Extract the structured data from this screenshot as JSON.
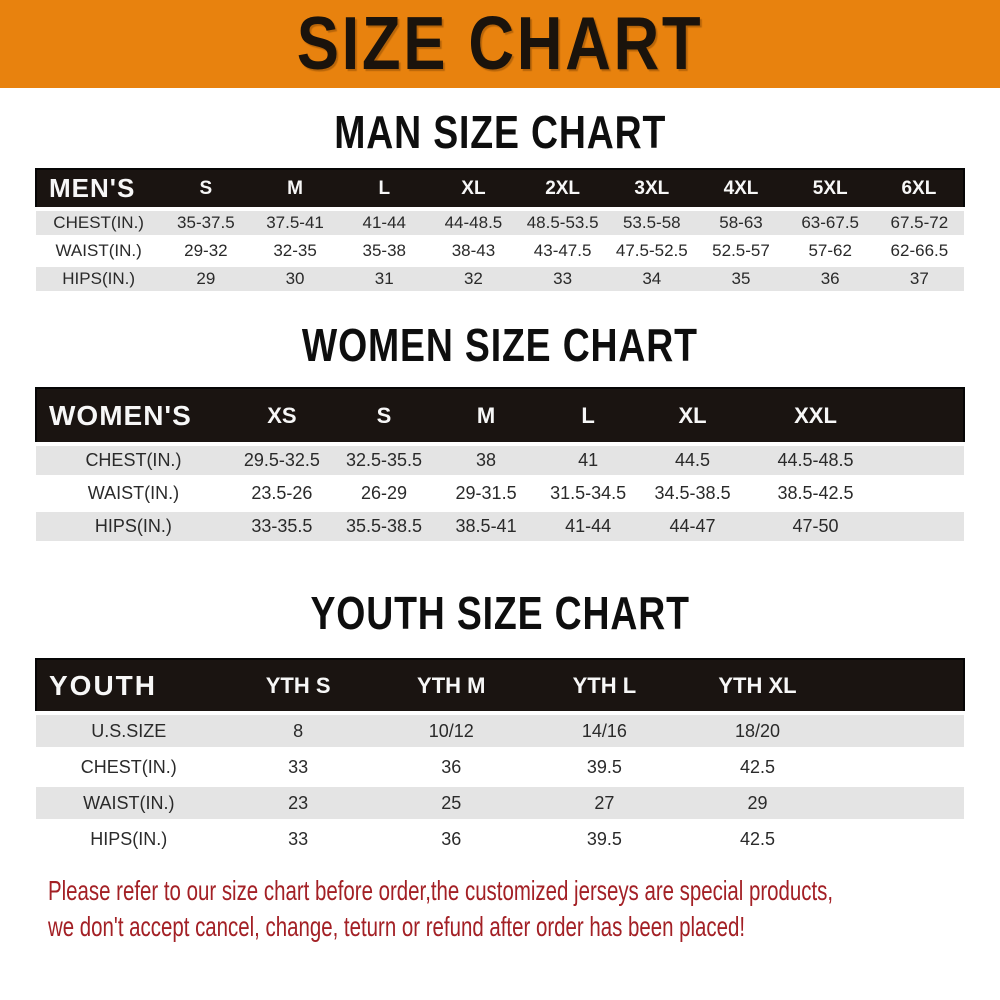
{
  "banner": {
    "title": "SIZE CHART",
    "bg_color": "#E8820E",
    "text_color": "#1A130C"
  },
  "sections": [
    {
      "name": "men",
      "title": "MAN SIZE CHART",
      "header": {
        "label": "MEN'S",
        "sizes": [
          "S",
          "M",
          "L",
          "XL",
          "2XL",
          "3XL",
          "4XL",
          "5XL",
          "6XL"
        ]
      },
      "rows": [
        {
          "label": "CHEST(IN.)",
          "values": [
            "35-37.5",
            "37.5-41",
            "41-44",
            "44-48.5",
            "48.5-53.5",
            "53.5-58",
            "58-63",
            "63-67.5",
            "67.5-72"
          ]
        },
        {
          "label": "WAIST(IN.)",
          "values": [
            "29-32",
            "32-35",
            "35-38",
            "38-43",
            "43-47.5",
            "47.5-52.5",
            "52.5-57",
            "57-62",
            "62-66.5"
          ]
        },
        {
          "label": "HIPS(IN.)",
          "values": [
            "29",
            "30",
            "31",
            "32",
            "33",
            "34",
            "35",
            "36",
            "37"
          ]
        }
      ]
    },
    {
      "name": "women",
      "title": "WOMEN SIZE CHART",
      "header": {
        "label": "WOMEN'S",
        "sizes": [
          "XS",
          "S",
          "M",
          "L",
          "XL",
          "XXL"
        ]
      },
      "rows": [
        {
          "label": "CHEST(IN.)",
          "values": [
            "29.5-32.5",
            "32.5-35.5",
            "38",
            "41",
            "44.5",
            "44.5-48.5"
          ]
        },
        {
          "label": "WAIST(IN.)",
          "values": [
            "23.5-26",
            "26-29",
            "29-31.5",
            "31.5-34.5",
            "34.5-38.5",
            "38.5-42.5"
          ]
        },
        {
          "label": "HIPS(IN.)",
          "values": [
            "33-35.5",
            "35.5-38.5",
            "38.5-41",
            "41-44",
            "44-47",
            "47-50"
          ]
        }
      ]
    },
    {
      "name": "youth",
      "title": "YOUTH SIZE CHART",
      "header": {
        "label": "YOUTH",
        "sizes": [
          "YTH S",
          "YTH M",
          "YTH L",
          "YTH XL"
        ]
      },
      "rows": [
        {
          "label": "U.S.SIZE",
          "values": [
            "8",
            "10/12",
            "14/16",
            "18/20"
          ]
        },
        {
          "label": "CHEST(IN.)",
          "values": [
            "33",
            "36",
            "39.5",
            "42.5"
          ]
        },
        {
          "label": "WAIST(IN.)",
          "values": [
            "23",
            "25",
            "27",
            "29"
          ]
        },
        {
          "label": "HIPS(IN.)",
          "values": [
            "33",
            "36",
            "39.5",
            "42.5"
          ]
        }
      ]
    }
  ],
  "footer": {
    "lines": [
      "Please refer to our size chart before order,the customized jerseys are special products,",
      "we don't accept cancel, change, teturn or refund after order has been placed!"
    ],
    "text_color": "#A32025"
  },
  "colors": {
    "banner_bg": "#E8820E",
    "header_bar": "#1A1411",
    "row_stripe": "#E4E4E4",
    "row_alt": "#FFFFFF",
    "footer_text": "#A32025"
  }
}
